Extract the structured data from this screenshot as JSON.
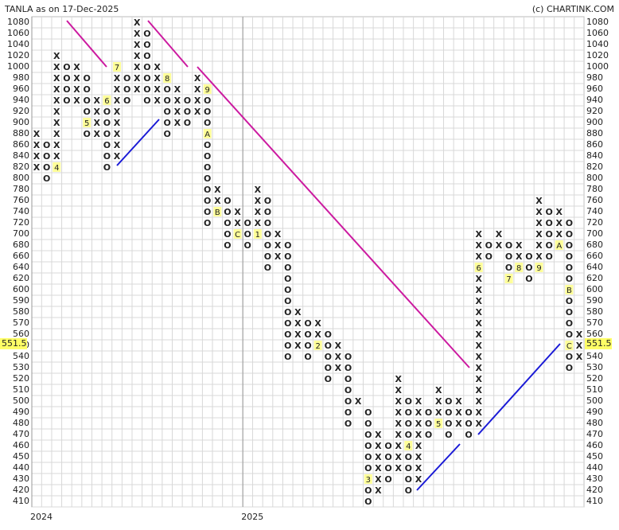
{
  "chart_data": {
    "type": "pointfigure",
    "title": "TANLA as on 17-Dec-2025",
    "source": "(c) CHARTINK.COM",
    "colors": {
      "X": "#2e8b2e",
      "O": "#e53935",
      "marker_bg": "#ffff99",
      "last_bg": "#ffff66"
    },
    "yticks": [
      1080,
      1060,
      1040,
      1020,
      1000,
      980,
      960,
      940,
      920,
      900,
      880,
      860,
      840,
      820,
      800,
      780,
      760,
      740,
      720,
      700,
      680,
      660,
      640,
      620,
      600,
      590,
      580,
      570,
      560,
      550,
      540,
      530,
      520,
      510,
      500,
      490,
      480,
      470,
      460,
      450,
      440,
      430,
      420,
      410
    ],
    "last_price": 551.5,
    "x_labels": [
      "2024",
      "2025"
    ],
    "columns": [
      {
        "type": "X",
        "low": 820,
        "high": 880,
        "markers": []
      },
      {
        "type": "O",
        "low": 800,
        "high": 860,
        "markers": []
      },
      {
        "type": "X",
        "low": 820,
        "high": 1020,
        "markers": [
          {
            "price": 820,
            "label": "4"
          }
        ]
      },
      {
        "type": "O",
        "low": 940,
        "high": 1000,
        "markers": []
      },
      {
        "type": "X",
        "low": 940,
        "high": 1000,
        "markers": []
      },
      {
        "type": "O",
        "low": 880,
        "high": 980,
        "markers": [
          {
            "price": 900,
            "label": "5"
          }
        ]
      },
      {
        "type": "X",
        "low": 880,
        "high": 940,
        "markers": []
      },
      {
        "type": "O",
        "low": 820,
        "high": 940,
        "markers": [
          {
            "price": 940,
            "label": "6"
          }
        ]
      },
      {
        "type": "X",
        "low": 840,
        "high": 1000,
        "markers": [
          {
            "price": 1000,
            "label": "7"
          }
        ]
      },
      {
        "type": "O",
        "low": 940,
        "high": 980,
        "markers": []
      },
      {
        "type": "X",
        "low": 960,
        "high": 1080,
        "markers": []
      },
      {
        "type": "O",
        "low": 940,
        "high": 1060,
        "markers": []
      },
      {
        "type": "X",
        "low": 940,
        "high": 1000,
        "markers": []
      },
      {
        "type": "O",
        "low": 880,
        "high": 980,
        "markers": [
          {
            "price": 980,
            "label": "8"
          }
        ]
      },
      {
        "type": "X",
        "low": 900,
        "high": 960,
        "markers": []
      },
      {
        "type": "O",
        "low": 900,
        "high": 940,
        "markers": []
      },
      {
        "type": "X",
        "low": 920,
        "high": 980,
        "markers": []
      },
      {
        "type": "O",
        "low": 720,
        "high": 960,
        "markers": [
          {
            "price": 960,
            "label": "9"
          },
          {
            "price": 880,
            "label": "A"
          }
        ]
      },
      {
        "type": "X",
        "low": 740,
        "high": 780,
        "markers": [
          {
            "price": 740,
            "label": "B"
          }
        ]
      },
      {
        "type": "O",
        "low": 680,
        "high": 760,
        "markers": []
      },
      {
        "type": "X",
        "low": 700,
        "high": 740,
        "markers": [
          {
            "price": 700,
            "label": "C"
          }
        ]
      },
      {
        "type": "O",
        "low": 680,
        "high": 720,
        "markers": []
      },
      {
        "type": "X",
        "low": 700,
        "high": 780,
        "markers": [
          {
            "price": 700,
            "label": "1"
          }
        ]
      },
      {
        "type": "O",
        "low": 640,
        "high": 760,
        "markers": []
      },
      {
        "type": "X",
        "low": 660,
        "high": 700,
        "markers": []
      },
      {
        "type": "O",
        "low": 540,
        "high": 680,
        "markers": []
      },
      {
        "type": "X",
        "low": 550,
        "high": 580,
        "markers": []
      },
      {
        "type": "O",
        "low": 540,
        "high": 570,
        "markers": []
      },
      {
        "type": "X",
        "low": 550,
        "high": 570,
        "markers": [
          {
            "price": 550,
            "label": "2"
          }
        ]
      },
      {
        "type": "O",
        "low": 520,
        "high": 560,
        "markers": []
      },
      {
        "type": "X",
        "low": 530,
        "high": 550,
        "markers": []
      },
      {
        "type": "O",
        "low": 480,
        "high": 540,
        "markers": []
      },
      {
        "type": "X",
        "low": 500,
        "high": 500,
        "markers": []
      },
      {
        "type": "O",
        "low": 410,
        "high": 490,
        "markers": [
          {
            "price": 430,
            "label": "3"
          }
        ]
      },
      {
        "type": "X",
        "low": 420,
        "high": 470,
        "markers": []
      },
      {
        "type": "O",
        "low": 430,
        "high": 460,
        "markers": []
      },
      {
        "type": "X",
        "low": 440,
        "high": 520,
        "markers": []
      },
      {
        "type": "O",
        "low": 420,
        "high": 500,
        "markers": [
          {
            "price": 460,
            "label": "4"
          }
        ]
      },
      {
        "type": "X",
        "low": 430,
        "high": 500,
        "markers": []
      },
      {
        "type": "O",
        "low": 470,
        "high": 490,
        "markers": []
      },
      {
        "type": "X",
        "low": 480,
        "high": 510,
        "markers": [
          {
            "price": 480,
            "label": "5"
          }
        ]
      },
      {
        "type": "O",
        "low": 470,
        "high": 500,
        "markers": []
      },
      {
        "type": "X",
        "low": 480,
        "high": 500,
        "markers": []
      },
      {
        "type": "O",
        "low": 470,
        "high": 490,
        "markers": []
      },
      {
        "type": "X",
        "low": 480,
        "high": 700,
        "markers": [
          {
            "price": 640,
            "label": "6"
          }
        ]
      },
      {
        "type": "O",
        "low": 660,
        "high": 680,
        "markers": []
      },
      {
        "type": "X",
        "low": 680,
        "high": 700,
        "markers": []
      },
      {
        "type": "O",
        "low": 620,
        "high": 680,
        "markers": [
          {
            "price": 620,
            "label": "7"
          }
        ]
      },
      {
        "type": "X",
        "low": 640,
        "high": 680,
        "markers": [
          {
            "price": 640,
            "label": "8"
          }
        ]
      },
      {
        "type": "O",
        "low": 620,
        "high": 660,
        "markers": []
      },
      {
        "type": "X",
        "low": 640,
        "high": 760,
        "markers": [
          {
            "price": 640,
            "label": "9"
          }
        ]
      },
      {
        "type": "O",
        "low": 660,
        "high": 740,
        "markers": []
      },
      {
        "type": "X",
        "low": 680,
        "high": 740,
        "markers": [
          {
            "price": 680,
            "label": "A"
          }
        ]
      },
      {
        "type": "O",
        "low": 530,
        "high": 720,
        "markers": [
          {
            "price": 600,
            "label": "B"
          },
          {
            "price": 550,
            "label": "C"
          }
        ]
      },
      {
        "type": "X",
        "low": 540,
        "high": 560,
        "markers": []
      }
    ]
  }
}
